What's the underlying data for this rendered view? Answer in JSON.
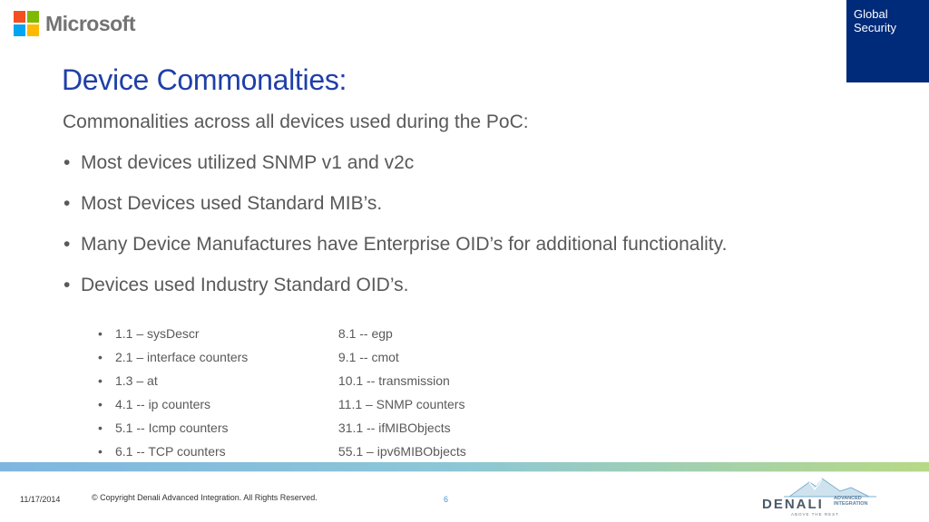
{
  "header": {
    "logo_text": "Microsoft",
    "logo_colors": [
      "#f25022",
      "#7fba00",
      "#00a4ef",
      "#ffb900"
    ],
    "badge_line1": "Global",
    "badge_line2": "Security",
    "badge_color": "#002a7a"
  },
  "slide": {
    "title": "Device Commonalties:",
    "intro": "Commonalities across all devices used during the PoC:",
    "bullets": [
      "Most devices utilized SNMP v1 and v2c",
      "Most Devices used Standard MIB’s.",
      "Many Device Manufactures have Enterprise OID’s for additional functionality.",
      "Devices used Industry Standard OID’s."
    ],
    "oids_left": [
      "1.1 – sysDescr",
      "2.1 – interface counters",
      "1.3 – at",
      "4.1 -- ip counters",
      "5.1 -- Icmp counters",
      "6.1 -- TCP counters"
    ],
    "oids_right": [
      "8.1 -- egp",
      "9.1 -- cmot",
      "10.1 -- transmission",
      "11.1 – SNMP counters",
      "31.1 -- ifMIBObjects",
      "55.1 – ipv6MIBObjects"
    ]
  },
  "footer": {
    "date": "11/17/2014",
    "copyright": "© Copyright Denali Advanced Integration. All Rights Reserved.",
    "page": "6",
    "denali_name": "DENALI",
    "denali_adv1": "ADVANCED",
    "denali_adv2": "INTEGRATION",
    "denali_tag": "ABOVE THE REST"
  }
}
